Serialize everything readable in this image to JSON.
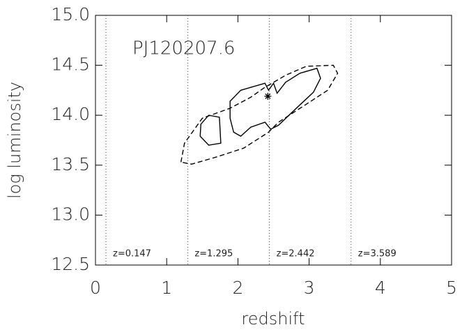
{
  "chart_data": {
    "type": "contour",
    "annotation": "PJ120207.6",
    "x_label": "redshift",
    "y_label": "log luminosity",
    "xlim": [
      0,
      5
    ],
    "ylim": [
      12.5,
      15.0
    ],
    "xticks": [
      0,
      1,
      2,
      3,
      4,
      5
    ],
    "yticks": [
      12.5,
      {
        "value": 13.0,
        "label": "13.0"
      },
      13.5,
      {
        "value": 14.0,
        "label": "14.0"
      },
      14.5,
      {
        "value": 15.0,
        "label": "15.0"
      }
    ],
    "redshift_markers": [
      {
        "value": 0.147,
        "label": "z=0.147"
      },
      {
        "value": 1.295,
        "label": "z=1.295"
      },
      {
        "value": 2.442,
        "label": "z=2.442"
      },
      {
        "value": 3.589,
        "label": "z=3.589"
      }
    ],
    "color": "#000000",
    "contours": [
      {
        "style": "dashed",
        "x": [
          1.2,
          1.25,
          1.5,
          1.89,
          2.18,
          2.38,
          2.67,
          2.96,
          3.34,
          3.4,
          3.26,
          2.96,
          2.57,
          2.43,
          2.08,
          1.69,
          1.35
        ],
        "y": [
          13.53,
          13.72,
          13.97,
          14.07,
          14.18,
          14.28,
          14.4,
          14.49,
          14.5,
          14.42,
          14.25,
          14.11,
          13.93,
          13.83,
          13.67,
          13.58,
          13.51
        ]
      },
      {
        "style": "solid",
        "x": [
          1.89,
          2.04,
          2.38,
          2.43,
          2.5,
          2.55,
          2.67,
          2.87,
          3.11,
          3.16,
          3.06,
          2.82,
          2.57,
          2.46,
          2.38,
          2.18,
          2.04,
          1.94,
          1.89
        ],
        "y": [
          14.14,
          14.25,
          14.32,
          14.25,
          14.32,
          14.22,
          14.33,
          14.42,
          14.47,
          14.37,
          14.23,
          14.07,
          13.9,
          13.86,
          13.93,
          13.88,
          13.79,
          13.83,
          13.97
        ]
      },
      {
        "style": "solid",
        "x": [
          1.48,
          1.59,
          1.74,
          1.76,
          1.59,
          1.47
        ],
        "y": [
          13.91,
          14.0,
          13.98,
          13.72,
          13.7,
          13.79
        ]
      }
    ],
    "points": {
      "x": [
        2.42
      ],
      "y": [
        14.19
      ]
    }
  }
}
